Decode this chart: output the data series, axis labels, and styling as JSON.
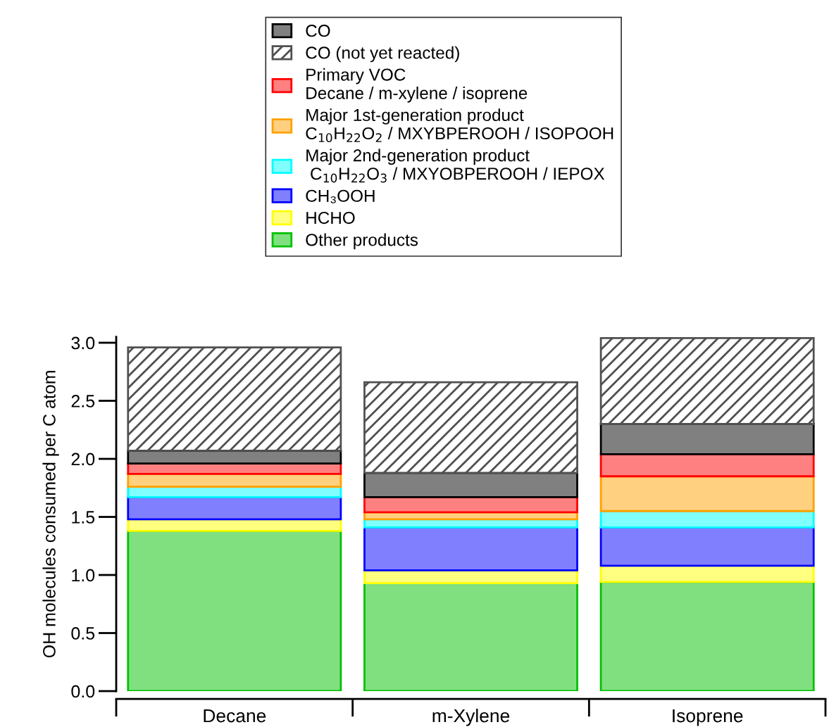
{
  "chart_data": {
    "type": "bar",
    "stacked": true,
    "ylabel": "OH molecules consumed per C atom",
    "categories": [
      "Decane",
      "m-Xylene",
      "Isoprene"
    ],
    "series": [
      {
        "name": "Other products",
        "color": "#80e080",
        "values": [
          1.38,
          0.93,
          0.94
        ]
      },
      {
        "name": "HCHO",
        "color": "#ffff80",
        "values": [
          0.1,
          0.11,
          0.14
        ]
      },
      {
        "name": "CH₃OOH",
        "color": "#8080ff",
        "values": [
          0.19,
          0.37,
          0.33
        ]
      },
      {
        "name": "Major 2nd-generation product\n C$_{10}$H$_{22}$O$_{3}$ / MXYOBPEROOH / IEPOX",
        "color": "#80ffff",
        "values": [
          0.09,
          0.07,
          0.14
        ]
      },
      {
        "name": "Major 1st-generation product\nC$_{10}$H$_{22}$O$_{2}$ / MXYBPEROOH / ISOPOOH",
        "color": "#ffd080",
        "values": [
          0.11,
          0.06,
          0.3
        ]
      },
      {
        "name": "Primary VOC\nDecane / m-xylene / isoprene",
        "color": "#ff8080",
        "values": [
          0.09,
          0.13,
          0.19
        ]
      },
      {
        "name": "CO",
        "color": "#808080",
        "values": [
          0.11,
          0.21,
          0.26
        ]
      },
      {
        "name": "CO (not yet reacted)",
        "color": "#505050",
        "values": [
          0.89,
          0.78,
          0.74
        ]
      }
    ],
    "ylim": [
      0,
      3.05
    ],
    "yticks": [
      {
        "value": 0,
        "label": "0.0"
      },
      {
        "value": 0.5,
        "label": "0.5"
      },
      {
        "value": 1,
        "label": "1.0"
      },
      {
        "value": 1.5,
        "label": "1.5"
      },
      {
        "value": 2,
        "label": "2.0"
      },
      {
        "value": 2.5,
        "label": "2.5"
      },
      {
        "value": 3,
        "label": "3.0"
      }
    ],
    "legend": "top",
    "grid": false
  }
}
